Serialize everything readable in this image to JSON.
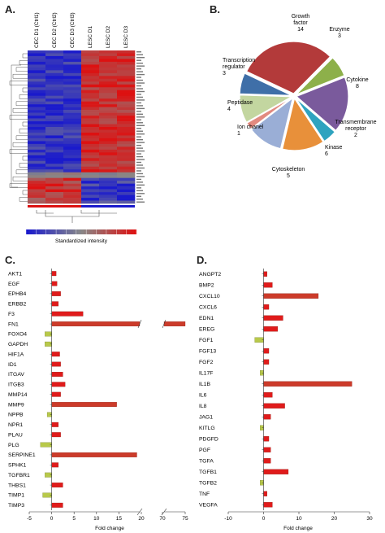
{
  "panels": {
    "a": "A.",
    "b": "B.",
    "c": "C.",
    "d": "D."
  },
  "chart_data": [
    {
      "type": "heatmap",
      "columns": [
        "CEC D1 (Ctrl1)",
        "CEC D2 (Ctrl2)",
        "CEC D3 (Ctrl3)",
        "LESC D1",
        "LESC D2",
        "LESC D3"
      ],
      "colorbar_label": "Standardized intensity",
      "colors": {
        "low": "#1a1acc",
        "mid": "#888888",
        "high": "#dd1111"
      }
    },
    {
      "type": "pie",
      "slices": [
        {
          "label": "Growth factor",
          "value": 14,
          "color": "#b33a3a"
        },
        {
          "label": "Enzyme",
          "value": 3,
          "color": "#8db04a"
        },
        {
          "label": "Cytokine",
          "value": 8,
          "color": "#7a5a9c"
        },
        {
          "label": "Transmembrane receptor",
          "value": 2,
          "color": "#2fa3bf"
        },
        {
          "label": "Kinase",
          "value": 6,
          "color": "#e8903a"
        },
        {
          "label": "Cytoskeleton",
          "value": 5,
          "color": "#9aaed6"
        },
        {
          "label": "Ion chanel",
          "value": 1,
          "color": "#e28a80"
        },
        {
          "label": "Peptidase",
          "value": 4,
          "color": "#c3d6a0"
        },
        {
          "label": "Transcription regulator",
          "value": 3,
          "color": "#3f6fa8"
        }
      ]
    },
    {
      "type": "bar",
      "orientation": "horizontal",
      "categories": [
        "AKT1",
        "EGF",
        "EPHB4",
        "ERBB2",
        "F3",
        "FN1",
        "FOXO4",
        "GAPDH",
        "HIF1A",
        "ID1",
        "ITGAV",
        "ITGB3",
        "MMP14",
        "MMP9",
        "NPPB",
        "NPR1",
        "PLAU",
        "PLG",
        "SERPINE1",
        "SPHK1",
        "TGFBR1",
        "THBS1",
        "TIMP1",
        "TIMP3"
      ],
      "values": [
        1.0,
        1.2,
        2.0,
        1.5,
        7.0,
        75.0,
        -1.5,
        -1.5,
        1.8,
        2.0,
        2.5,
        3.0,
        2.0,
        14.5,
        -1.0,
        1.5,
        2.0,
        -2.5,
        19.0,
        1.5,
        -1.5,
        2.5,
        -2.0,
        2.5
      ],
      "xlabel": "Fold change",
      "xticks": [
        -5,
        0,
        5,
        10,
        15,
        20,
        70,
        75
      ],
      "xlim": [
        -5,
        75
      ],
      "axis_break": [
        20,
        70
      ]
    },
    {
      "type": "bar",
      "orientation": "horizontal",
      "categories": [
        "ANGPT2",
        "BMP2",
        "CXCL10",
        "CXCL6",
        "EDN1",
        "EREG",
        "FGF1",
        "FGF13",
        "FGF2",
        "IL17F",
        "IL1B",
        "IL6",
        "IL8",
        "JAG1",
        "KITLG",
        "PDGFD",
        "PGF",
        "TGFA",
        "TGFB1",
        "TGFB2",
        "TNF",
        "VEGFA"
      ],
      "values": [
        1.0,
        2.5,
        15.5,
        1.5,
        5.5,
        4.0,
        -2.5,
        1.5,
        1.5,
        -1.0,
        25.0,
        2.5,
        6.0,
        2.0,
        -1.0,
        1.5,
        2.0,
        2.0,
        7.0,
        -1.0,
        1.0,
        2.5
      ],
      "xlabel": "Fold change",
      "xticks": [
        -10,
        0,
        10,
        20,
        30
      ],
      "xlim": [
        -10,
        30
      ]
    }
  ]
}
